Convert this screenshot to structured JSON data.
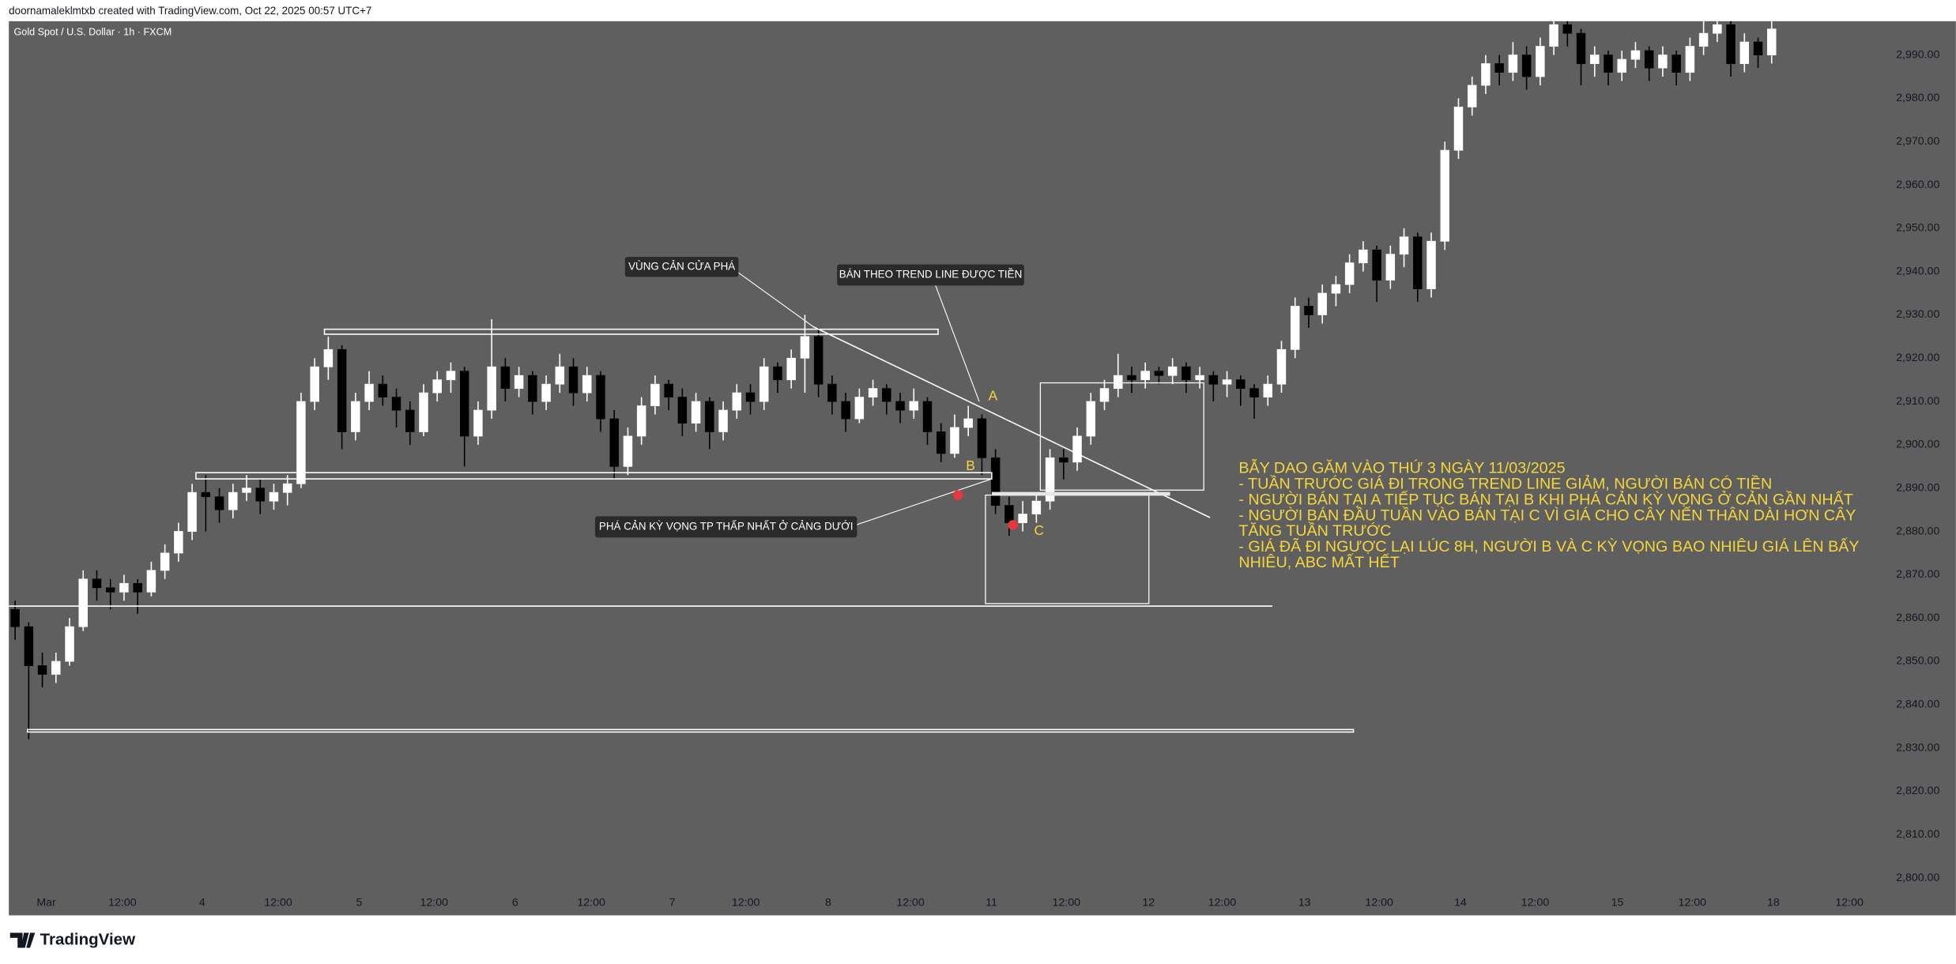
{
  "chart_data": {
    "type": "candlestick",
    "header": "doornamaleklmtxb created with TradingView.com, Oct 22, 2025 00:57 UTC+7",
    "title": "Gold Spot / U.S. Dollar · 1h · FXCM",
    "brand": "TradingView",
    "up_color": "#ffffff",
    "down_color": "#000000",
    "ylim": [
      2797.4,
      2997.8
    ],
    "yticks": [
      {
        "value": 2800,
        "label": "2,800.00"
      },
      {
        "value": 2810,
        "label": "2,810.00"
      },
      {
        "value": 2820,
        "label": "2,820.00"
      },
      {
        "value": 2830,
        "label": "2,830.00"
      },
      {
        "value": 2840,
        "label": "2,840.00"
      },
      {
        "value": 2850,
        "label": "2,850.00"
      },
      {
        "value": 2860,
        "label": "2,860.00"
      },
      {
        "value": 2870,
        "label": "2,870.00"
      },
      {
        "value": 2880,
        "label": "2,880.00"
      },
      {
        "value": 2890,
        "label": "2,890.00"
      },
      {
        "value": 2900,
        "label": "2,900.00"
      },
      {
        "value": 2910,
        "label": "2,910.00"
      },
      {
        "value": 2920,
        "label": "2,920.00"
      },
      {
        "value": 2930,
        "label": "2,930.00"
      },
      {
        "value": 2940,
        "label": "2,940.00"
      },
      {
        "value": 2950,
        "label": "2,950.00"
      },
      {
        "value": 2960,
        "label": "2,960.00"
      },
      {
        "value": 2970,
        "label": "2,970.00"
      },
      {
        "value": 2980,
        "label": "2,980.00"
      },
      {
        "value": 2990,
        "label": "2,990.00"
      }
    ],
    "xlim": [
      -0.46,
      136.3
    ],
    "xticks": [
      {
        "value": 2.29,
        "label": "Mar"
      },
      {
        "value": 7.88,
        "label": "12:00"
      },
      {
        "value": 13.74,
        "label": "4"
      },
      {
        "value": 19.32,
        "label": "12:00"
      },
      {
        "value": 25.27,
        "label": "5"
      },
      {
        "value": 30.77,
        "label": "12:00"
      },
      {
        "value": 36.72,
        "label": "6"
      },
      {
        "value": 42.31,
        "label": "12:00"
      },
      {
        "value": 48.26,
        "label": "7"
      },
      {
        "value": 53.66,
        "label": "12:00"
      },
      {
        "value": 59.71,
        "label": "8"
      },
      {
        "value": 65.75,
        "label": "12:00"
      },
      {
        "value": 71.7,
        "label": "11"
      },
      {
        "value": 77.2,
        "label": "12:00"
      },
      {
        "value": 83.24,
        "label": "12"
      },
      {
        "value": 88.64,
        "label": "12:00"
      },
      {
        "value": 94.69,
        "label": "13"
      },
      {
        "value": 100.18,
        "label": "12:00"
      },
      {
        "value": 106.14,
        "label": "14"
      },
      {
        "value": 111.63,
        "label": "12:00"
      },
      {
        "value": 117.67,
        "label": "15"
      },
      {
        "value": 123.17,
        "label": "12:00"
      },
      {
        "value": 129.12,
        "label": "18"
      },
      {
        "value": 134.71,
        "label": "12:00"
      }
    ],
    "ohlc": [
      [
        2862,
        2864,
        2855,
        2858
      ],
      [
        2858,
        2859,
        2832,
        2849
      ],
      [
        2849,
        2852,
        2844,
        2847
      ],
      [
        2847,
        2852,
        2845,
        2850
      ],
      [
        2850,
        2860,
        2849,
        2858
      ],
      [
        2858,
        2871,
        2857,
        2869
      ],
      [
        2869,
        2871,
        2864,
        2867
      ],
      [
        2867,
        2869,
        2862,
        2866
      ],
      [
        2866,
        2870,
        2864,
        2868
      ],
      [
        2868,
        2869,
        2861,
        2866
      ],
      [
        2866,
        2873,
        2865,
        2871
      ],
      [
        2871,
        2877,
        2869,
        2875
      ],
      [
        2875,
        2882,
        2873,
        2880
      ],
      [
        2880,
        2891,
        2878,
        2889
      ],
      [
        2889,
        2893,
        2880,
        2888
      ],
      [
        2888,
        2890,
        2882,
        2885
      ],
      [
        2885,
        2891,
        2883,
        2889
      ],
      [
        2889,
        2893,
        2887,
        2890
      ],
      [
        2890,
        2892,
        2884,
        2887
      ],
      [
        2887,
        2891,
        2885,
        2889
      ],
      [
        2889,
        2893,
        2886,
        2891
      ],
      [
        2891,
        2912,
        2890,
        2910
      ],
      [
        2910,
        2920,
        2908,
        2918
      ],
      [
        2918,
        2925,
        2915,
        2922
      ],
      [
        2922,
        2923,
        2899,
        2903
      ],
      [
        2903,
        2912,
        2901,
        2910
      ],
      [
        2910,
        2917,
        2908,
        2914
      ],
      [
        2914,
        2916,
        2909,
        2911
      ],
      [
        2911,
        2913,
        2904,
        2908
      ],
      [
        2908,
        2910,
        2900,
        2903
      ],
      [
        2903,
        2914,
        2902,
        2912
      ],
      [
        2912,
        2917,
        2910,
        2915
      ],
      [
        2915,
        2919,
        2912,
        2917
      ],
      [
        2917,
        2918,
        2895,
        2902
      ],
      [
        2902,
        2910,
        2900,
        2908
      ],
      [
        2908,
        2929,
        2906,
        2918
      ],
      [
        2918,
        2920,
        2910,
        2913
      ],
      [
        2913,
        2918,
        2911,
        2916
      ],
      [
        2916,
        2917,
        2907,
        2910
      ],
      [
        2910,
        2916,
        2908,
        2914
      ],
      [
        2914,
        2921,
        2912,
        2918
      ],
      [
        2918,
        2920,
        2909,
        2912
      ],
      [
        2912,
        2918,
        2910,
        2916
      ],
      [
        2916,
        2917,
        2903,
        2906
      ],
      [
        2906,
        2908,
        2892,
        2895
      ],
      [
        2895,
        2904,
        2893,
        2902
      ],
      [
        2902,
        2911,
        2900,
        2909
      ],
      [
        2909,
        2916,
        2907,
        2914
      ],
      [
        2914,
        2915,
        2908,
        2911
      ],
      [
        2911,
        2913,
        2902,
        2905
      ],
      [
        2905,
        2912,
        2903,
        2910
      ],
      [
        2910,
        2911,
        2899,
        2903
      ],
      [
        2903,
        2910,
        2901,
        2908
      ],
      [
        2908,
        2914,
        2906,
        2912
      ],
      [
        2912,
        2914,
        2907,
        2910
      ],
      [
        2910,
        2920,
        2908,
        2918
      ],
      [
        2918,
        2919,
        2912,
        2915
      ],
      [
        2915,
        2922,
        2913,
        2920
      ],
      [
        2920,
        2930,
        2912,
        2925
      ],
      [
        2925,
        2927,
        2911,
        2914
      ],
      [
        2914,
        2916,
        2907,
        2910
      ],
      [
        2910,
        2912,
        2903,
        2906
      ],
      [
        2906,
        2913,
        2905,
        2911
      ],
      [
        2911,
        2915,
        2909,
        2913
      ],
      [
        2913,
        2914,
        2907,
        2910
      ],
      [
        2910,
        2912,
        2905,
        2908
      ],
      [
        2908,
        2913,
        2906,
        2910
      ],
      [
        2910,
        2911,
        2900,
        2903
      ],
      [
        2903,
        2905,
        2896,
        2898
      ],
      [
        2898,
        2907,
        2897,
        2904
      ],
      [
        2904,
        2909,
        2902,
        2906
      ],
      [
        2906,
        2907,
        2893,
        2897
      ],
      [
        2897,
        2899,
        2884,
        2886
      ],
      [
        2886,
        2888,
        2879,
        2882
      ],
      [
        2882,
        2887,
        2880,
        2884
      ],
      [
        2884,
        2889,
        2882,
        2887
      ],
      [
        2887,
        2899,
        2885,
        2897
      ],
      [
        2897,
        2899,
        2892,
        2896
      ],
      [
        2896,
        2904,
        2894,
        2902
      ],
      [
        2902,
        2912,
        2900,
        2910
      ],
      [
        2910,
        2915,
        2908,
        2913
      ],
      [
        2913,
        2921,
        2911,
        2916
      ],
      [
        2916,
        2918,
        2912,
        2915
      ],
      [
        2915,
        2919,
        2913,
        2917
      ],
      [
        2917,
        2918,
        2914,
        2916
      ],
      [
        2916,
        2920,
        2914,
        2918
      ],
      [
        2918,
        2919,
        2912,
        2915
      ],
      [
        2915,
        2918,
        2913,
        2916
      ],
      [
        2916,
        2917,
        2910,
        2914
      ],
      [
        2914,
        2917,
        2911,
        2915
      ],
      [
        2915,
        2916,
        2909,
        2913
      ],
      [
        2913,
        2914,
        2906,
        2911
      ],
      [
        2911,
        2916,
        2909,
        2914
      ],
      [
        2914,
        2924,
        2912,
        2922
      ],
      [
        2922,
        2934,
        2920,
        2932
      ],
      [
        2932,
        2934,
        2927,
        2930
      ],
      [
        2930,
        2937,
        2928,
        2935
      ],
      [
        2935,
        2939,
        2932,
        2937
      ],
      [
        2937,
        2944,
        2935,
        2942
      ],
      [
        2942,
        2947,
        2940,
        2945
      ],
      [
        2945,
        2946,
        2933,
        2938
      ],
      [
        2938,
        2946,
        2936,
        2944
      ],
      [
        2944,
        2950,
        2941,
        2948
      ],
      [
        2948,
        2949,
        2933,
        2936
      ],
      [
        2936,
        2949,
        2934,
        2947
      ],
      [
        2947,
        2970,
        2945,
        2968
      ],
      [
        2968,
        2980,
        2966,
        2978
      ],
      [
        2978,
        2985,
        2976,
        2983
      ],
      [
        2983,
        2990,
        2981,
        2988
      ],
      [
        2988,
        2990,
        2983,
        2986
      ],
      [
        2986,
        2993,
        2984,
        2990
      ],
      [
        2990,
        2992,
        2982,
        2985
      ],
      [
        2985,
        2994,
        2983,
        2992
      ],
      [
        2992,
        3001,
        2990,
        2997
      ],
      [
        2997,
        3000,
        2992,
        2995
      ],
      [
        2995,
        2996,
        2983,
        2988
      ],
      [
        2988,
        2992,
        2985,
        2990
      ],
      [
        2990,
        2991,
        2983,
        2986
      ],
      [
        2986,
        2991,
        2984,
        2989
      ],
      [
        2989,
        2993,
        2987,
        2991
      ],
      [
        2991,
        2992,
        2984,
        2987
      ],
      [
        2987,
        2992,
        2985,
        2990
      ],
      [
        2990,
        2991,
        2983,
        2986
      ],
      [
        2986,
        2994,
        2984,
        2992
      ],
      [
        2992,
        3000,
        2990,
        2995
      ],
      [
        2995,
        3002,
        2993,
        2997
      ],
      [
        2997,
        2998,
        2985,
        2988
      ],
      [
        2988,
        2995,
        2986,
        2993
      ],
      [
        2993,
        2994,
        2987,
        2990
      ],
      [
        2990,
        3000,
        2988,
        2996
      ]
    ],
    "callouts": [
      "VÙNG CẢN CỬA PHÁ",
      "BÁN THEO TREND LINE ĐƯỢC TIỀN",
      "PHÁ CẢN KỲ VỌNG TP THẤP NHẤT Ở CẢNG DƯỚI"
    ],
    "points": [
      "A",
      "B",
      "C"
    ],
    "note": [
      "BẪY DAO GĂM VÀO THỨ 3 NGÀY 11/03/2025",
      "- TUẦN TRƯỚC GIÁ ĐI TRONG TREND LINE GIẢM, NGƯỜI BÁN CÓ TIỀN",
      "- NGƯỜI BÁN TẠI A TIẾP TỤC BÁN TẠI B KHI PHÁ CẢN KỲ VỌNG Ở CẢN GẦN NHẤT",
      "- NGƯỜI BÁN ĐẦU TUẦN VÀO BÁN TẠI C VÌ GIÁ CHO CÂY NẾN THÂN DÀI HƠN CÂY",
      "TĂNG TUẦN TRƯỚC",
      "- GIÁ ĐÃ ĐI NGƯỢC LẠI LÚC 8H, NGƯỜI B VÀ C KỲ VỌNG BAO NHIÊU GIÁ LÊN BẤY",
      "NHIÊU, ABC MẤT HẾT"
    ]
  }
}
